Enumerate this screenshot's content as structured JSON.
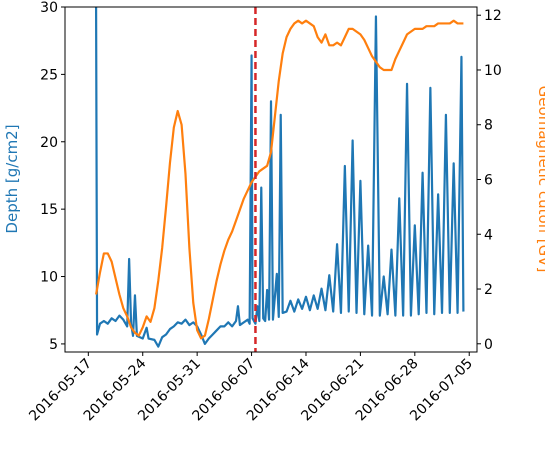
{
  "chart_data": {
    "type": "line",
    "x_type": "date",
    "xlim": [
      "2016-05-14",
      "2016-07-06"
    ],
    "x_ticks": [
      "2016-05-17",
      "2016-05-24",
      "2016-05-31",
      "2016-06-07",
      "2016-06-14",
      "2016-06-21",
      "2016-06-28",
      "2016-07-05"
    ],
    "y_left": {
      "label": "Depth [g/cm2]",
      "lim": [
        4.4,
        30
      ],
      "ticks": [
        5,
        10,
        15,
        20,
        25,
        30
      ],
      "color": "#1f77b4"
    },
    "y_right": {
      "label": "Geomagnetic cutoff [GV]",
      "lim": [
        -0.3,
        12.3
      ],
      "ticks": [
        0,
        2,
        4,
        6,
        8,
        10,
        12
      ],
      "color": "#ff7f0e"
    },
    "vline": {
      "x": "2016-06-07T12:00",
      "color": "#d62728",
      "style": "dashed"
    },
    "grid": false,
    "series": [
      {
        "axis": "left",
        "color": "#1f77b4",
        "points": [
          [
            "2016-05-18T00:00",
            30.0
          ],
          [
            "2016-05-18T03:00",
            5.7
          ],
          [
            "2016-05-18T12:00",
            6.5
          ],
          [
            "2016-05-19T00:00",
            6.7
          ],
          [
            "2016-05-19T12:00",
            6.5
          ],
          [
            "2016-05-20T00:00",
            6.9
          ],
          [
            "2016-05-20T12:00",
            6.7
          ],
          [
            "2016-05-21T00:00",
            7.1
          ],
          [
            "2016-05-21T12:00",
            6.8
          ],
          [
            "2016-05-22T00:00",
            6.3
          ],
          [
            "2016-05-22T06:00",
            11.3
          ],
          [
            "2016-05-22T12:00",
            6.5
          ],
          [
            "2016-05-22T18:00",
            5.6
          ],
          [
            "2016-05-23T00:00",
            8.6
          ],
          [
            "2016-05-23T06:00",
            5.6
          ],
          [
            "2016-05-24T00:00",
            5.4
          ],
          [
            "2016-05-24T12:00",
            6.2
          ],
          [
            "2016-05-24T18:00",
            5.4
          ],
          [
            "2016-05-25T12:00",
            5.3
          ],
          [
            "2016-05-26T00:00",
            4.8
          ],
          [
            "2016-05-26T12:00",
            5.5
          ],
          [
            "2016-05-27T00:00",
            5.7
          ],
          [
            "2016-05-27T12:00",
            6.1
          ],
          [
            "2016-05-28T00:00",
            6.3
          ],
          [
            "2016-05-28T12:00",
            6.6
          ],
          [
            "2016-05-29T00:00",
            6.5
          ],
          [
            "2016-05-29T12:00",
            6.8
          ],
          [
            "2016-05-30T00:00",
            6.4
          ],
          [
            "2016-05-30T12:00",
            6.6
          ],
          [
            "2016-05-31T00:00",
            6.3
          ],
          [
            "2016-05-31T12:00",
            5.7
          ],
          [
            "2016-06-01T00:00",
            5.0
          ],
          [
            "2016-06-01T12:00",
            5.4
          ],
          [
            "2016-06-02T00:00",
            5.7
          ],
          [
            "2016-06-02T12:00",
            6.0
          ],
          [
            "2016-06-03T00:00",
            6.3
          ],
          [
            "2016-06-03T12:00",
            6.3
          ],
          [
            "2016-06-04T00:00",
            6.6
          ],
          [
            "2016-06-04T12:00",
            6.3
          ],
          [
            "2016-06-05T00:00",
            6.7
          ],
          [
            "2016-06-05T06:00",
            7.8
          ],
          [
            "2016-06-05T12:00",
            6.4
          ],
          [
            "2016-06-06T00:00",
            6.6
          ],
          [
            "2016-06-06T12:00",
            6.8
          ],
          [
            "2016-06-06T18:00",
            6.5
          ],
          [
            "2016-06-07T00:00",
            26.4
          ],
          [
            "2016-06-07T03:00",
            6.9
          ],
          [
            "2016-06-07T12:00",
            6.5
          ],
          [
            "2016-06-07T18:00",
            7.8
          ],
          [
            "2016-06-08T00:00",
            6.7
          ],
          [
            "2016-06-08T06:00",
            16.6
          ],
          [
            "2016-06-08T12:00",
            6.9
          ],
          [
            "2016-06-08T18:00",
            6.7
          ],
          [
            "2016-06-09T00:00",
            9.0
          ],
          [
            "2016-06-09T06:00",
            6.8
          ],
          [
            "2016-06-09T12:00",
            23.0
          ],
          [
            "2016-06-09T18:00",
            6.8
          ],
          [
            "2016-06-10T06:00",
            10.2
          ],
          [
            "2016-06-10T12:00",
            7.0
          ],
          [
            "2016-06-10T18:00",
            22.0
          ],
          [
            "2016-06-11T00:00",
            7.3
          ],
          [
            "2016-06-11T12:00",
            7.4
          ],
          [
            "2016-06-12T00:00",
            8.2
          ],
          [
            "2016-06-12T12:00",
            7.4
          ],
          [
            "2016-06-13T00:00",
            8.3
          ],
          [
            "2016-06-13T12:00",
            7.6
          ],
          [
            "2016-06-14T00:00",
            8.5
          ],
          [
            "2016-06-14T12:00",
            7.5
          ],
          [
            "2016-06-15T00:00",
            8.6
          ],
          [
            "2016-06-15T12:00",
            7.6
          ],
          [
            "2016-06-16T00:00",
            9.1
          ],
          [
            "2016-06-16T12:00",
            7.5
          ],
          [
            "2016-06-17T00:00",
            10.1
          ],
          [
            "2016-06-17T12:00",
            7.4
          ],
          [
            "2016-06-18T00:00",
            12.4
          ],
          [
            "2016-06-18T12:00",
            7.3
          ],
          [
            "2016-06-19T00:00",
            18.2
          ],
          [
            "2016-06-19T12:00",
            7.4
          ],
          [
            "2016-06-20T00:00",
            20.1
          ],
          [
            "2016-06-20T12:00",
            7.3
          ],
          [
            "2016-06-21T00:00",
            17.1
          ],
          [
            "2016-06-21T12:00",
            7.2
          ],
          [
            "2016-06-22T00:00",
            12.3
          ],
          [
            "2016-06-22T12:00",
            7.1
          ],
          [
            "2016-06-23T00:00",
            29.3
          ],
          [
            "2016-06-23T12:00",
            7.1
          ],
          [
            "2016-06-24T00:00",
            10.0
          ],
          [
            "2016-06-24T12:00",
            7.2
          ],
          [
            "2016-06-25T00:00",
            12.0
          ],
          [
            "2016-06-25T12:00",
            7.1
          ],
          [
            "2016-06-26T00:00",
            15.8
          ],
          [
            "2016-06-26T12:00",
            7.1
          ],
          [
            "2016-06-27T00:00",
            24.3
          ],
          [
            "2016-06-27T12:00",
            7.1
          ],
          [
            "2016-06-28T00:00",
            13.8
          ],
          [
            "2016-06-28T12:00",
            7.2
          ],
          [
            "2016-06-29T00:00",
            17.7
          ],
          [
            "2016-06-29T12:00",
            7.3
          ],
          [
            "2016-06-30T00:00",
            24.0
          ],
          [
            "2016-06-30T12:00",
            7.2
          ],
          [
            "2016-07-01T00:00",
            16.1
          ],
          [
            "2016-07-01T12:00",
            7.3
          ],
          [
            "2016-07-02T00:00",
            22.0
          ],
          [
            "2016-07-02T12:00",
            7.3
          ],
          [
            "2016-07-03T00:00",
            18.4
          ],
          [
            "2016-07-03T12:00",
            7.3
          ],
          [
            "2016-07-04T00:00",
            26.3
          ],
          [
            "2016-07-04T06:00",
            7.4
          ]
        ]
      },
      {
        "axis": "right",
        "color": "#ff7f0e",
        "points": [
          [
            "2016-05-18T00:00",
            1.8
          ],
          [
            "2016-05-18T12:00",
            2.6
          ],
          [
            "2016-05-19T00:00",
            3.3
          ],
          [
            "2016-05-19T12:00",
            3.3
          ],
          [
            "2016-05-20T00:00",
            3.0
          ],
          [
            "2016-05-20T12:00",
            2.4
          ],
          [
            "2016-05-21T00:00",
            1.8
          ],
          [
            "2016-05-21T12:00",
            1.3
          ],
          [
            "2016-05-22T00:00",
            1.0
          ],
          [
            "2016-05-22T12:00",
            0.6
          ],
          [
            "2016-05-23T00:00",
            0.4
          ],
          [
            "2016-05-23T12:00",
            0.3
          ],
          [
            "2016-05-24T00:00",
            0.6
          ],
          [
            "2016-05-24T12:00",
            1.0
          ],
          [
            "2016-05-25T00:00",
            0.8
          ],
          [
            "2016-05-25T12:00",
            1.3
          ],
          [
            "2016-05-26T00:00",
            2.3
          ],
          [
            "2016-05-26T12:00",
            3.5
          ],
          [
            "2016-05-27T00:00",
            5.0
          ],
          [
            "2016-05-27T12:00",
            6.6
          ],
          [
            "2016-05-28T00:00",
            7.9
          ],
          [
            "2016-05-28T12:00",
            8.5
          ],
          [
            "2016-05-29T00:00",
            8.0
          ],
          [
            "2016-05-29T12:00",
            6.2
          ],
          [
            "2016-05-30T00:00",
            3.5
          ],
          [
            "2016-05-30T12:00",
            1.5
          ],
          [
            "2016-05-31T00:00",
            0.5
          ],
          [
            "2016-05-31T12:00",
            0.2
          ],
          [
            "2016-06-01T00:00",
            0.3
          ],
          [
            "2016-06-01T12:00",
            0.9
          ],
          [
            "2016-06-02T00:00",
            1.6
          ],
          [
            "2016-06-02T12:00",
            2.3
          ],
          [
            "2016-06-03T00:00",
            2.9
          ],
          [
            "2016-06-03T12:00",
            3.4
          ],
          [
            "2016-06-04T00:00",
            3.8
          ],
          [
            "2016-06-04T12:00",
            4.1
          ],
          [
            "2016-06-05T00:00",
            4.5
          ],
          [
            "2016-06-05T12:00",
            4.9
          ],
          [
            "2016-06-06T00:00",
            5.3
          ],
          [
            "2016-06-06T12:00",
            5.6
          ],
          [
            "2016-06-07T00:00",
            5.9
          ],
          [
            "2016-06-07T12:00",
            6.1
          ],
          [
            "2016-06-08T00:00",
            6.3
          ],
          [
            "2016-06-08T12:00",
            6.4
          ],
          [
            "2016-06-09T00:00",
            6.5
          ],
          [
            "2016-06-09T12:00",
            7.0
          ],
          [
            "2016-06-10T00:00",
            8.3
          ],
          [
            "2016-06-10T12:00",
            9.6
          ],
          [
            "2016-06-11T00:00",
            10.6
          ],
          [
            "2016-06-11T12:00",
            11.2
          ],
          [
            "2016-06-12T00:00",
            11.5
          ],
          [
            "2016-06-12T12:00",
            11.7
          ],
          [
            "2016-06-13T00:00",
            11.8
          ],
          [
            "2016-06-13T12:00",
            11.7
          ],
          [
            "2016-06-14T00:00",
            11.8
          ],
          [
            "2016-06-14T12:00",
            11.7
          ],
          [
            "2016-06-15T00:00",
            11.6
          ],
          [
            "2016-06-15T12:00",
            11.2
          ],
          [
            "2016-06-16T00:00",
            11.0
          ],
          [
            "2016-06-16T12:00",
            11.3
          ],
          [
            "2016-06-17T00:00",
            10.9
          ],
          [
            "2016-06-17T12:00",
            10.9
          ],
          [
            "2016-06-18T00:00",
            11.0
          ],
          [
            "2016-06-18T12:00",
            10.9
          ],
          [
            "2016-06-19T00:00",
            11.2
          ],
          [
            "2016-06-19T12:00",
            11.5
          ],
          [
            "2016-06-20T00:00",
            11.5
          ],
          [
            "2016-06-20T12:00",
            11.4
          ],
          [
            "2016-06-21T00:00",
            11.3
          ],
          [
            "2016-06-21T12:00",
            11.1
          ],
          [
            "2016-06-22T00:00",
            10.8
          ],
          [
            "2016-06-22T12:00",
            10.5
          ],
          [
            "2016-06-23T00:00",
            10.3
          ],
          [
            "2016-06-23T12:00",
            10.1
          ],
          [
            "2016-06-24T00:00",
            10.0
          ],
          [
            "2016-06-24T12:00",
            10.0
          ],
          [
            "2016-06-25T00:00",
            10.0
          ],
          [
            "2016-06-25T12:00",
            10.4
          ],
          [
            "2016-06-26T00:00",
            10.7
          ],
          [
            "2016-06-26T12:00",
            11.0
          ],
          [
            "2016-06-27T00:00",
            11.3
          ],
          [
            "2016-06-27T12:00",
            11.4
          ],
          [
            "2016-06-28T00:00",
            11.5
          ],
          [
            "2016-06-28T12:00",
            11.5
          ],
          [
            "2016-06-29T00:00",
            11.5
          ],
          [
            "2016-06-29T12:00",
            11.6
          ],
          [
            "2016-06-30T00:00",
            11.6
          ],
          [
            "2016-06-30T12:00",
            11.6
          ],
          [
            "2016-07-01T00:00",
            11.7
          ],
          [
            "2016-07-01T12:00",
            11.7
          ],
          [
            "2016-07-02T00:00",
            11.7
          ],
          [
            "2016-07-02T12:00",
            11.7
          ],
          [
            "2016-07-03T00:00",
            11.8
          ],
          [
            "2016-07-03T12:00",
            11.7
          ],
          [
            "2016-07-04T00:00",
            11.7
          ],
          [
            "2016-07-04T06:00",
            11.7
          ]
        ]
      }
    ]
  }
}
